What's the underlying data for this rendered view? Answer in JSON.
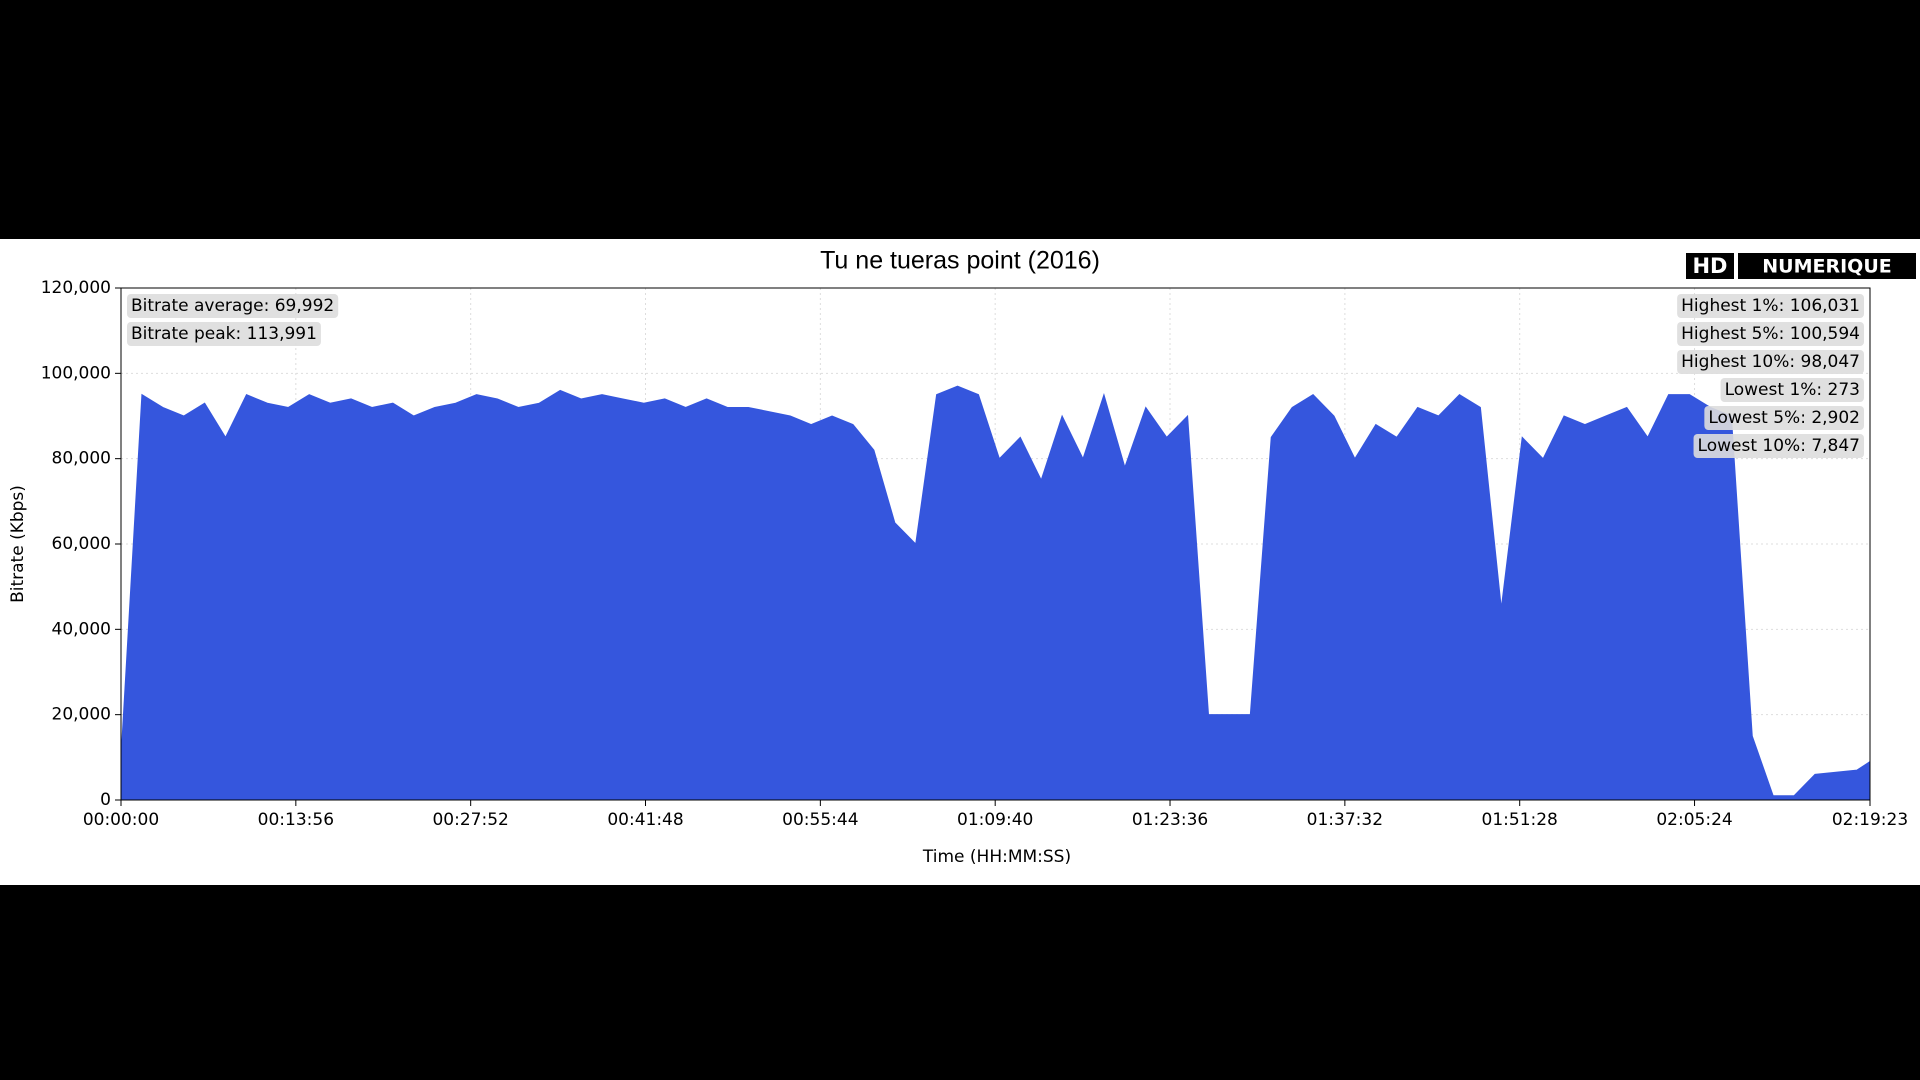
{
  "chart_data": {
    "type": "area",
    "title": "Tu ne tueras point (2016)",
    "xlabel": "Time (HH:MM:SS)",
    "ylabel": "Bitrate (Kbps)",
    "x": [
      0,
      100,
      200,
      300,
      400,
      500,
      600,
      700,
      800,
      900,
      1000,
      1100,
      1200,
      1300,
      1400,
      1500,
      1600,
      1700,
      1800,
      1900,
      2000,
      2100,
      2200,
      2300,
      2400,
      2500,
      2600,
      2700,
      2800,
      2900,
      3000,
      3100,
      3200,
      3300,
      3400,
      3500,
      3600,
      3700,
      3800,
      3900,
      4000,
      4100,
      4200,
      4300,
      4400,
      4500,
      4600,
      4700,
      4800,
      4900,
      5000,
      5100,
      5200,
      5300,
      5400,
      5500,
      5600,
      5700,
      5800,
      5900,
      6000,
      6100,
      6200,
      6300,
      6400,
      6500,
      6600,
      6700,
      6800,
      6900,
      7000,
      7100,
      7200,
      7300,
      7400,
      7500,
      7600,
      7700,
      7800,
      7900,
      8000,
      8100,
      8200,
      8300,
      8363
    ],
    "values": [
      10000,
      95000,
      92000,
      90000,
      93000,
      85000,
      95000,
      93000,
      92000,
      95000,
      93000,
      94000,
      92000,
      93000,
      90000,
      92000,
      93000,
      95000,
      94000,
      92000,
      93000,
      96000,
      94000,
      95000,
      94000,
      93000,
      94000,
      92000,
      94000,
      92000,
      92000,
      91000,
      90000,
      88000,
      90000,
      88000,
      82000,
      65000,
      60000,
      95000,
      97000,
      95000,
      80000,
      85000,
      75000,
      90000,
      80000,
      95000,
      78000,
      92000,
      85000,
      90000,
      20000,
      20000,
      20000,
      85000,
      92000,
      95000,
      90000,
      80000,
      88000,
      85000,
      92000,
      90000,
      95000,
      92000,
      45000,
      85000,
      80000,
      90000,
      88000,
      90000,
      92000,
      85000,
      95000,
      95000,
      92000,
      90000,
      15000,
      1000,
      1000,
      6000,
      6500,
      7000,
      9000
    ],
    "color": "#3556dd",
    "xlim": [
      0,
      8363
    ],
    "xticks": [
      {
        "value": 0,
        "label": "00:00:00"
      },
      {
        "value": 836,
        "label": "00:13:56"
      },
      {
        "value": 1672,
        "label": "00:27:52"
      },
      {
        "value": 2508,
        "label": "00:41:48"
      },
      {
        "value": 3344,
        "label": "00:55:44"
      },
      {
        "value": 4180,
        "label": "01:09:40"
      },
      {
        "value": 5016,
        "label": "01:23:36"
      },
      {
        "value": 5852,
        "label": "01:37:32"
      },
      {
        "value": 6688,
        "label": "01:51:28"
      },
      {
        "value": 7524,
        "label": "02:05:24"
      },
      {
        "value": 8363,
        "label": "02:19:23"
      }
    ],
    "ylim": [
      0,
      120000
    ],
    "yticks": [
      0,
      {
        "value": 20000,
        "label": "20,000"
      },
      {
        "value": 40000,
        "label": "40,000"
      },
      {
        "value": 60000,
        "label": "60,000"
      },
      {
        "value": 80000,
        "label": "80,000"
      },
      {
        "value": 100000,
        "label": "100,000"
      },
      {
        "value": 120000,
        "label": "120,000"
      }
    ],
    "grid": true,
    "annotations_left": [
      "Bitrate average: 69,992",
      "Bitrate peak: 113,991"
    ],
    "annotations_right": [
      "Highest 1%: 106,031",
      "Highest 5%: 100,594",
      "Highest 10%: 98,047",
      "Lowest 1%: 273",
      "Lowest 5%: 2,902",
      "Lowest 10%: 7,847"
    ]
  },
  "branding": {
    "prefix": "HD",
    "name": "NUMERIQUE"
  }
}
